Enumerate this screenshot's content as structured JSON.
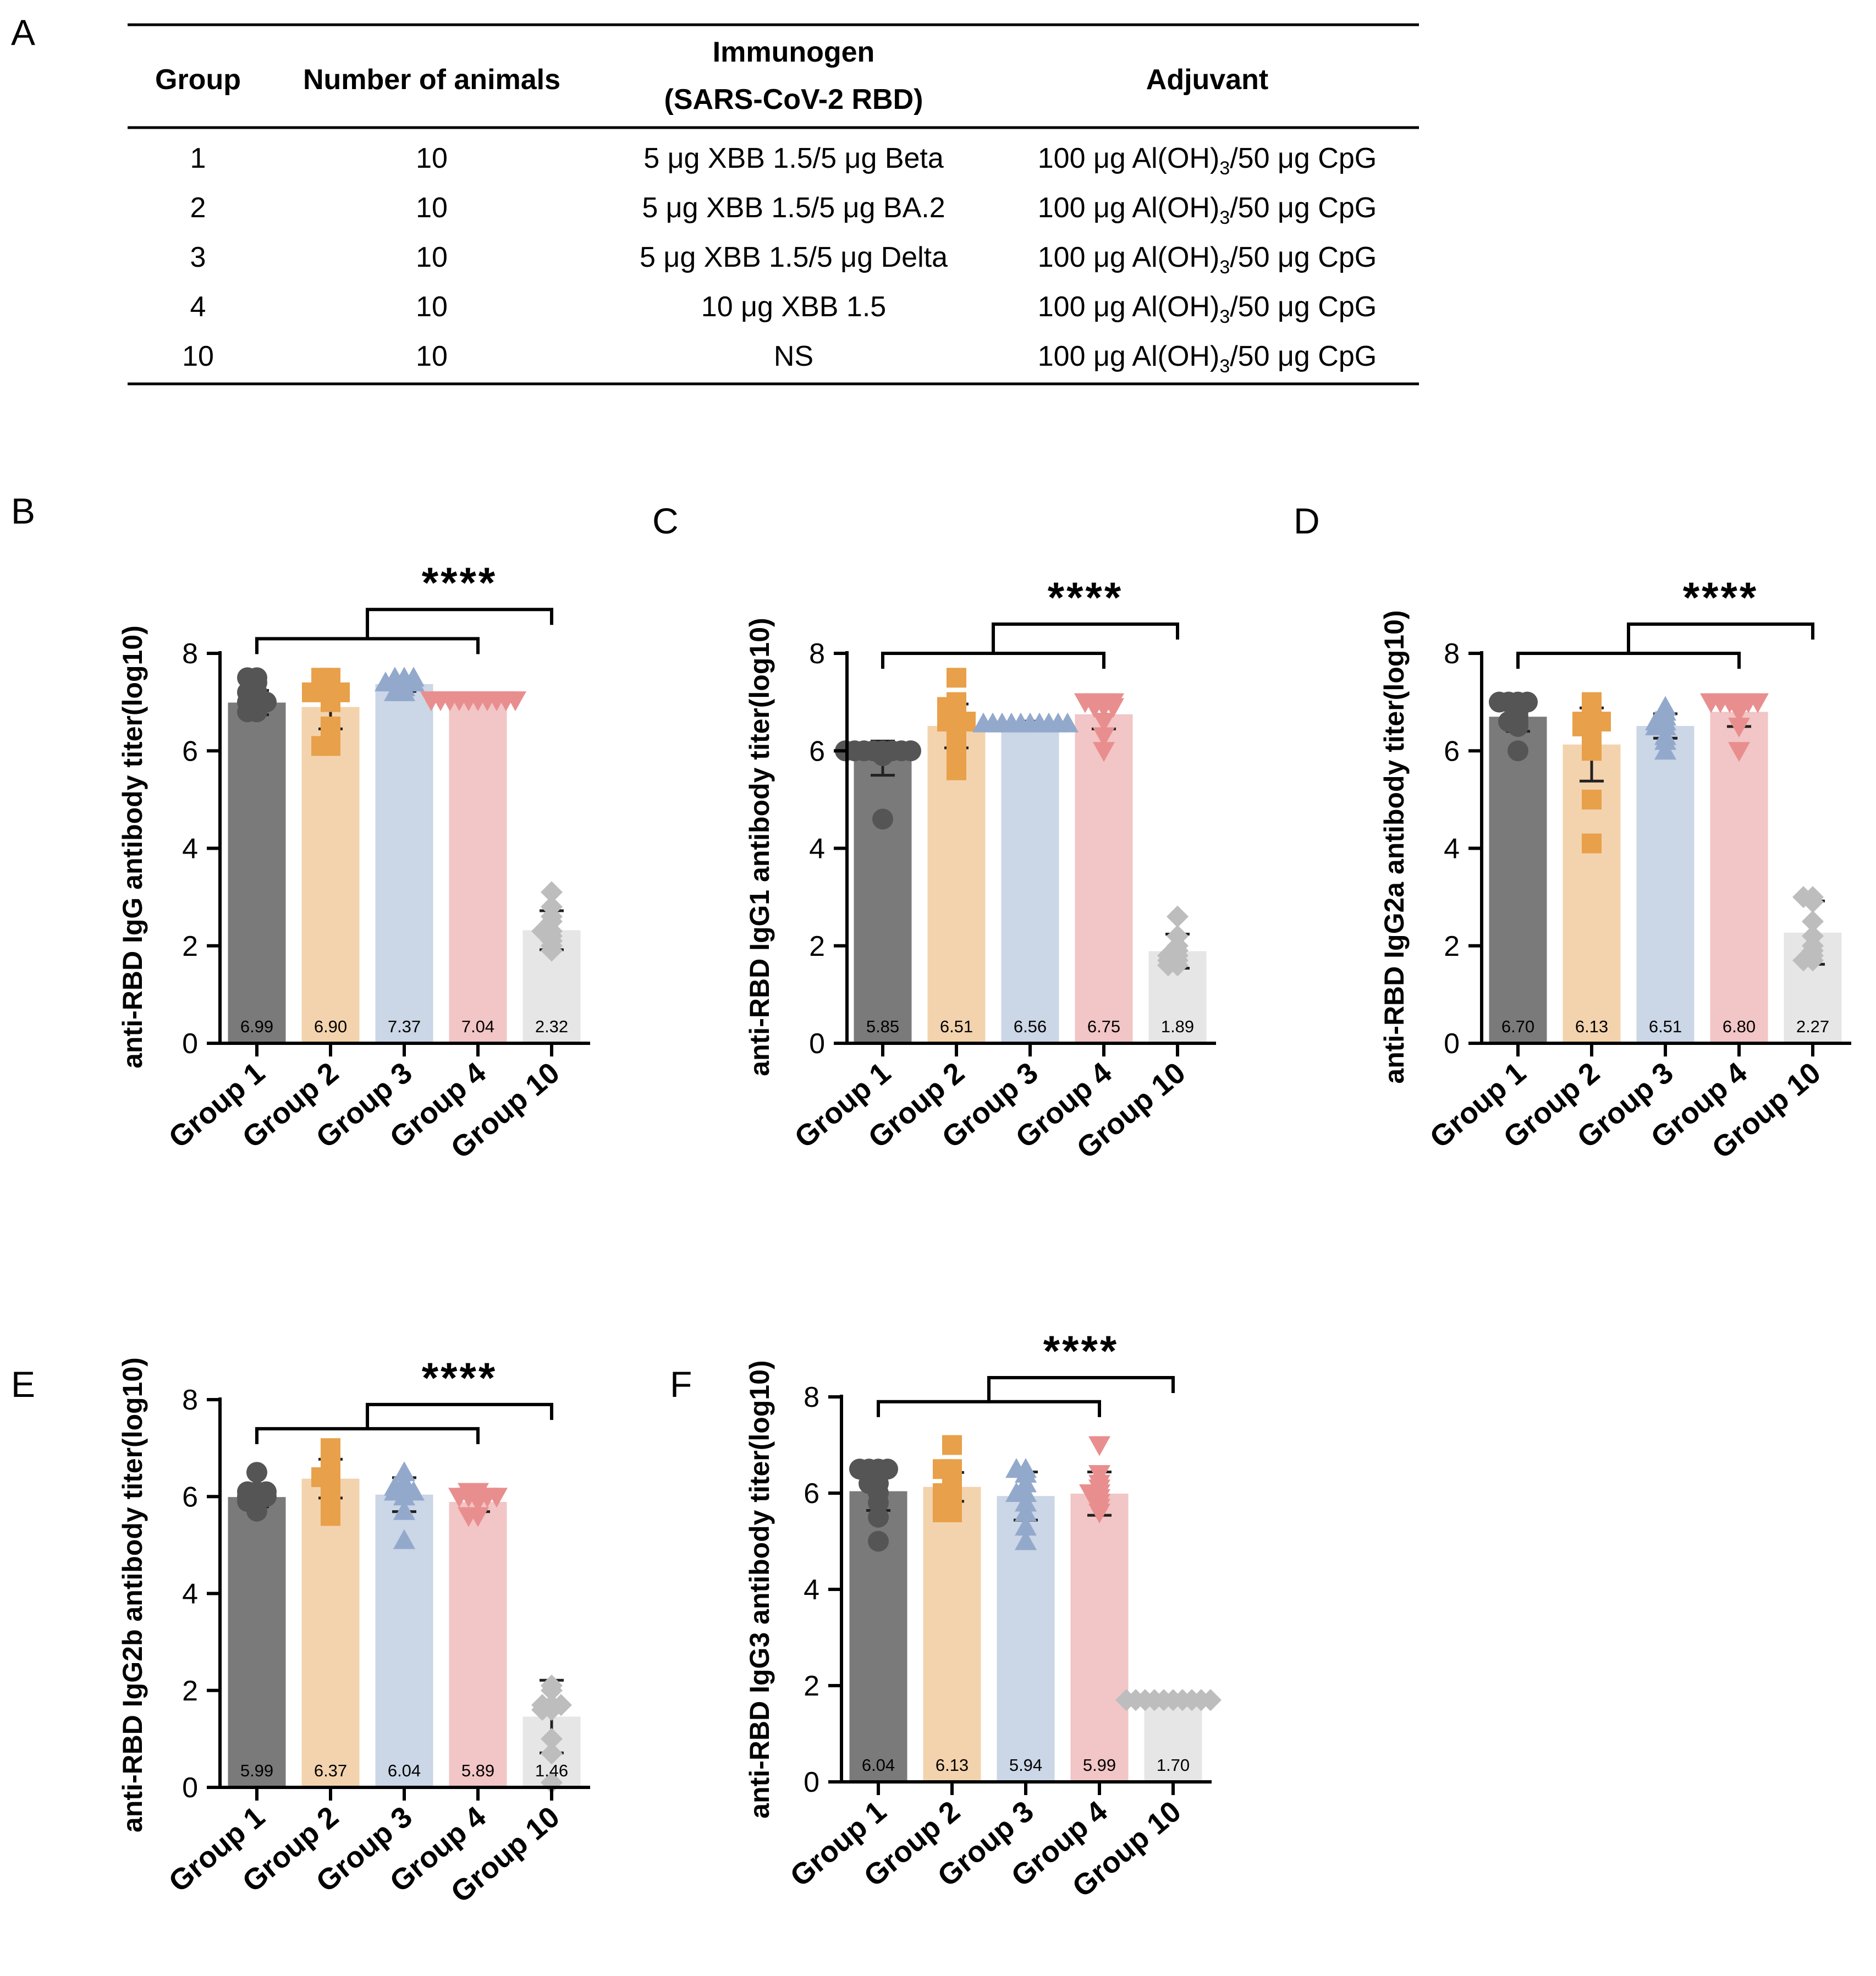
{
  "figure": {
    "panel_letters": [
      "A",
      "B",
      "C",
      "D",
      "E",
      "F"
    ]
  },
  "table": {
    "headers": {
      "group": "Group",
      "animals": "Number of animals",
      "immunogen_line1": "Immunogen",
      "immunogen_line2": "(SARS-CoV-2 RBD)",
      "adjuvant": "Adjuvant"
    },
    "rows": [
      {
        "group": "1",
        "animals": "10",
        "immunogen": "5 μg XBB 1.5/5 μg Beta",
        "adj_pre": "100 μg Al(OH)",
        "adj_sub": "3",
        "adj_post": "/50 μg CpG"
      },
      {
        "group": "2",
        "animals": "10",
        "immunogen": "5 μg XBB 1.5/5 μg BA.2",
        "adj_pre": "100 μg Al(OH)",
        "adj_sub": "3",
        "adj_post": "/50 μg CpG"
      },
      {
        "group": "3",
        "animals": "10",
        "immunogen": "5 μg XBB 1.5/5 μg Delta",
        "adj_pre": "100 μg Al(OH)",
        "adj_sub": "3",
        "adj_post": "/50 μg CpG"
      },
      {
        "group": "4",
        "animals": "10",
        "immunogen": "10 μg XBB 1.5",
        "adj_pre": "100 μg Al(OH)",
        "adj_sub": "3",
        "adj_post": "/50 μg CpG"
      },
      {
        "group": "10",
        "animals": "10",
        "immunogen": "NS",
        "adj_pre": "100 μg Al(OH)",
        "adj_sub": "3",
        "adj_post": "/50 μg CpG"
      }
    ]
  },
  "colors": {
    "bar_fill": [
      "#7a7a7a",
      "#f3d3ad",
      "#cbd6e6",
      "#f2c5c6",
      "#e6e6e6"
    ],
    "point_fill": [
      "#555555",
      "#e8a04a",
      "#93a9cc",
      "#e98e8e",
      "#bdbdbd"
    ],
    "axis": "#000000"
  },
  "chart_data": [
    {
      "panel": "B",
      "type": "bar",
      "ylabel": "anti-RBD IgG antibody titer(log10)",
      "categories": [
        "Group 1",
        "Group 2",
        "Group 3",
        "Group 4",
        "Group 10"
      ],
      "values": [
        6.99,
        6.9,
        7.37,
        7.04,
        2.32
      ],
      "value_labels": [
        "6.99",
        "6.90",
        "7.37",
        "7.04",
        "2.32"
      ],
      "errors": [
        0.25,
        0.45,
        0.15,
        0.0,
        0.4
      ],
      "points": [
        [
          6.8,
          6.8,
          7.0,
          7.0,
          7.0,
          7.2,
          7.2,
          7.4,
          7.5,
          7.5
        ],
        [
          6.1,
          6.1,
          6.5,
          7.0,
          7.2,
          7.2,
          7.2,
          7.2,
          7.5,
          7.5
        ],
        [
          7.2,
          7.2,
          7.3,
          7.4,
          7.4,
          7.4,
          7.4,
          7.5,
          7.5,
          7.5
        ],
        [
          7.04,
          7.04,
          7.04,
          7.04,
          7.04,
          7.04,
          7.04,
          7.04,
          7.04,
          7.04
        ],
        [
          1.9,
          2.0,
          2.1,
          2.2,
          2.3,
          2.3,
          2.5,
          2.6,
          2.8,
          3.1
        ]
      ],
      "markers": [
        "circle",
        "square",
        "triangle-up",
        "triangle-down",
        "diamond"
      ],
      "ylim": [
        0,
        8
      ],
      "yticks": [
        0,
        2,
        4,
        6,
        8
      ],
      "ytick_labels": [
        "0",
        "2",
        "4",
        "6",
        "8"
      ],
      "comparison": {
        "from": [
          0,
          3
        ],
        "to": 4,
        "label": "****",
        "bracket_y": 8.3,
        "top_y": 8.9
      }
    },
    {
      "panel": "C",
      "type": "bar",
      "ylabel": "anti-RBD IgG1 antibody titer(log10)",
      "categories": [
        "Group 1",
        "Group 2",
        "Group 3",
        "Group 4",
        "Group 10"
      ],
      "values": [
        5.85,
        6.51,
        6.56,
        6.75,
        1.89
      ],
      "value_labels": [
        "5.85",
        "6.51",
        "6.56",
        "6.75",
        "1.89"
      ],
      "errors": [
        0.35,
        0.45,
        0.05,
        0.3,
        0.35
      ],
      "points": [
        [
          4.6,
          5.9,
          6.0,
          6.0,
          6.0,
          6.0,
          6.0,
          6.0,
          6.0,
          6.0
        ],
        [
          5.6,
          6.0,
          6.3,
          6.6,
          6.6,
          6.6,
          6.9,
          6.9,
          7.0,
          7.5
        ],
        [
          6.56,
          6.56,
          6.56,
          6.56,
          6.56,
          6.56,
          6.56,
          6.56,
          6.56,
          6.56
        ],
        [
          6.0,
          6.3,
          6.6,
          6.9,
          6.9,
          6.9,
          7.0,
          7.0,
          7.0,
          7.0
        ],
        [
          1.6,
          1.6,
          1.7,
          1.7,
          1.8,
          1.8,
          1.9,
          2.0,
          2.2,
          2.6
        ]
      ],
      "markers": [
        "circle",
        "square",
        "triangle-up",
        "triangle-down",
        "diamond"
      ],
      "ylim": [
        0,
        8
      ],
      "yticks": [
        0,
        2,
        4,
        6,
        8
      ],
      "ytick_labels": [
        "0",
        "2",
        "4",
        "6",
        "8"
      ],
      "comparison": {
        "from": [
          0,
          3
        ],
        "to": 4,
        "label": "****",
        "bracket_y": 8.0,
        "top_y": 8.6
      }
    },
    {
      "panel": "D",
      "type": "bar",
      "ylabel": "anti-RBD IgG2a antibody titer(log10)",
      "categories": [
        "Group 1",
        "Group 2",
        "Group 3",
        "Group 4",
        "Group 10"
      ],
      "values": [
        6.7,
        6.13,
        6.51,
        6.8,
        2.27
      ],
      "value_labels": [
        "6.70",
        "6.13",
        "6.51",
        "6.80",
        "2.27"
      ],
      "errors": [
        0.3,
        0.75,
        0.25,
        0.3,
        0.65
      ],
      "points": [
        [
          6.0,
          6.5,
          6.6,
          6.6,
          6.7,
          6.8,
          7.0,
          7.0,
          7.0,
          7.0
        ],
        [
          4.1,
          5.0,
          6.0,
          6.3,
          6.5,
          6.5,
          6.6,
          6.6,
          6.6,
          7.0
        ],
        [
          6.0,
          6.2,
          6.3,
          6.5,
          6.5,
          6.6,
          6.6,
          6.7,
          6.8,
          6.9
        ],
        [
          6.0,
          6.5,
          6.8,
          6.9,
          7.0,
          7.0,
          7.0,
          7.0,
          7.0,
          7.0
        ],
        [
          1.7,
          1.7,
          1.8,
          1.9,
          2.0,
          2.2,
          2.5,
          2.9,
          3.0,
          3.0
        ]
      ],
      "markers": [
        "circle",
        "square",
        "triangle-up",
        "triangle-down",
        "diamond"
      ],
      "ylim": [
        0,
        8
      ],
      "yticks": [
        0,
        2,
        4,
        6,
        8
      ],
      "ytick_labels": [
        "0",
        "2",
        "4",
        "6",
        "8"
      ],
      "comparison": {
        "from": [
          0,
          3
        ],
        "to": 4,
        "label": "****",
        "bracket_y": 8.0,
        "top_y": 8.6
      }
    },
    {
      "panel": "E",
      "type": "bar",
      "ylabel": "anti-RBD IgG2b antibody titer(log10)",
      "categories": [
        "Group 1",
        "Group 2",
        "Group 3",
        "Group 4",
        "Group 10"
      ],
      "values": [
        5.99,
        6.37,
        6.04,
        5.89,
        1.46
      ],
      "value_labels": [
        "5.99",
        "6.37",
        "6.04",
        "5.89",
        "1.46"
      ],
      "errors": [
        0.2,
        0.4,
        0.35,
        0.2,
        0.75
      ],
      "points": [
        [
          5.7,
          5.9,
          5.9,
          6.0,
          6.0,
          6.0,
          6.1,
          6.1,
          6.1,
          6.5
        ],
        [
          5.6,
          6.0,
          6.1,
          6.3,
          6.4,
          6.4,
          6.6,
          6.7,
          6.9,
          7.0
        ],
        [
          5.1,
          5.7,
          6.0,
          6.1,
          6.1,
          6.1,
          6.2,
          6.2,
          6.3,
          6.5
        ],
        [
          5.6,
          5.6,
          5.9,
          6.0,
          6.0,
          6.0,
          6.0,
          6.0,
          6.1,
          6.1
        ],
        [
          0.1,
          0.7,
          1.0,
          1.6,
          1.6,
          1.7,
          1.7,
          1.7,
          2.0,
          2.1
        ]
      ],
      "markers": [
        "circle",
        "square",
        "triangle-up",
        "triangle-down",
        "diamond"
      ],
      "ylim": [
        0,
        8
      ],
      "yticks": [
        0,
        2,
        4,
        6,
        8
      ],
      "ytick_labels": [
        "0",
        "2",
        "4",
        "6",
        "8"
      ],
      "comparison": {
        "from": [
          0,
          3
        ],
        "to": 4,
        "label": "****",
        "bracket_y": 7.4,
        "top_y": 7.9
      }
    },
    {
      "panel": "F",
      "type": "bar",
      "ylabel": "anti-RBD IgG3 antibody titer(log10)",
      "categories": [
        "Group 1",
        "Group 2",
        "Group 3",
        "Group 4",
        "Group 10"
      ],
      "values": [
        6.04,
        6.13,
        5.94,
        5.99,
        1.7
      ],
      "value_labels": [
        "6.04",
        "6.13",
        "5.94",
        "5.99",
        "1.70"
      ],
      "errors": [
        0.4,
        0.3,
        0.5,
        0.45,
        0.0
      ],
      "points": [
        [
          5.0,
          5.5,
          5.8,
          6.0,
          6.2,
          6.2,
          6.5,
          6.5,
          6.5,
          6.5
        ],
        [
          5.6,
          5.6,
          5.8,
          6.0,
          6.0,
          6.2,
          6.3,
          6.5,
          6.5,
          7.0
        ],
        [
          5.0,
          5.3,
          5.6,
          5.8,
          6.0,
          6.0,
          6.2,
          6.4,
          6.5,
          6.5
        ],
        [
          5.6,
          5.7,
          5.8,
          5.9,
          6.0,
          6.0,
          6.1,
          6.2,
          6.4,
          7.0
        ],
        [
          1.7,
          1.7,
          1.7,
          1.7,
          1.7,
          1.7,
          1.7,
          1.7,
          1.7,
          1.7
        ]
      ],
      "markers": [
        "circle",
        "square",
        "triangle-up",
        "triangle-down",
        "diamond"
      ],
      "ylim": [
        0,
        8
      ],
      "yticks": [
        0,
        2,
        4,
        6,
        8
      ],
      "ytick_labels": [
        "0",
        "2",
        "4",
        "6",
        "8"
      ],
      "comparison": {
        "from": [
          0,
          3
        ],
        "to": 4,
        "label": "****",
        "bracket_y": 7.9,
        "top_y": 8.4
      }
    }
  ]
}
